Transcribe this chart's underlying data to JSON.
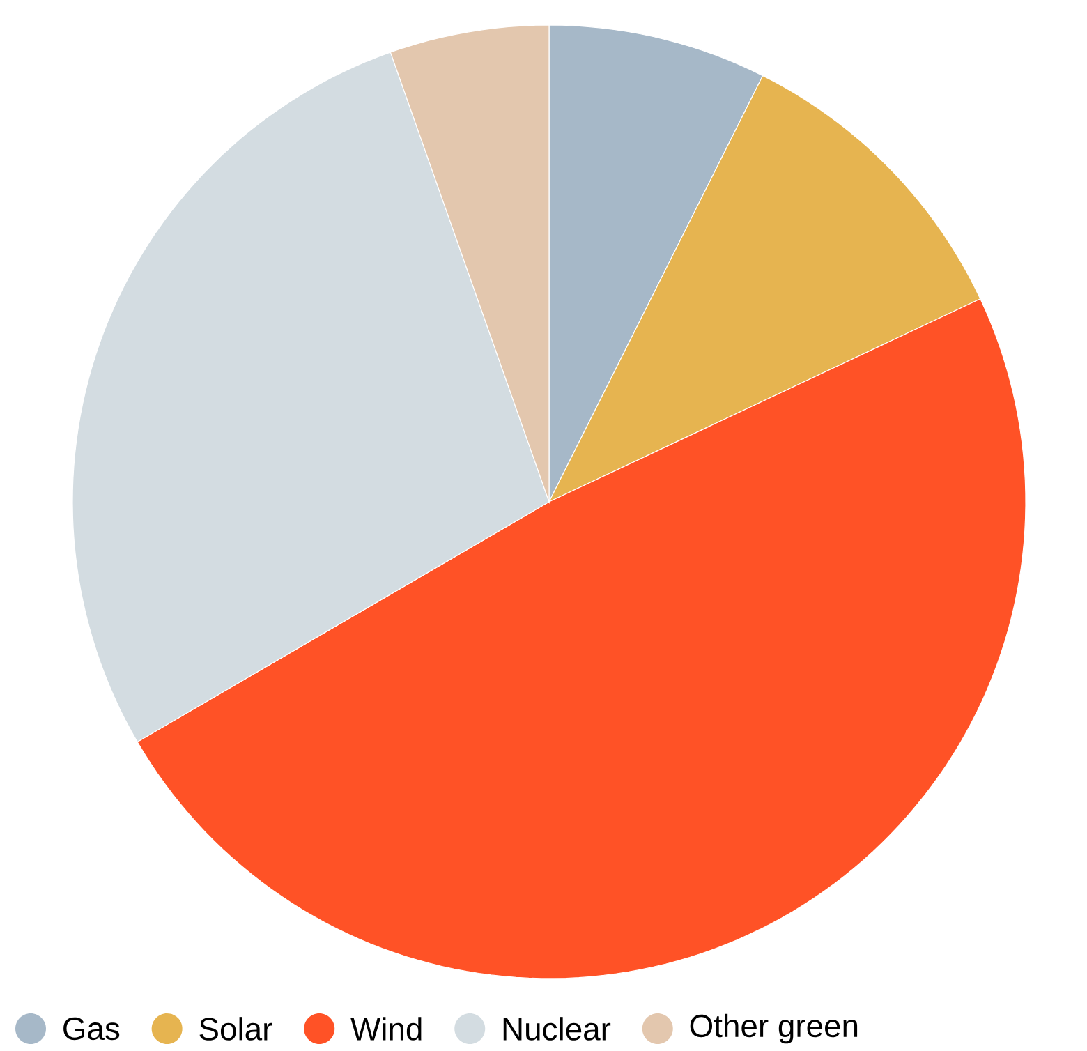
{
  "chart_data": {
    "type": "pie",
    "categories": [
      "Gas",
      "Solar",
      "Wind",
      "Nuclear",
      "Other green"
    ],
    "values": [
      7.4,
      10.6,
      48.6,
      28.0,
      5.4
    ],
    "colors": [
      "#a6b8c8",
      "#e6b450",
      "#ff5226",
      "#d3dce1",
      "#e3c7ae"
    ],
    "legend": "bottom"
  }
}
